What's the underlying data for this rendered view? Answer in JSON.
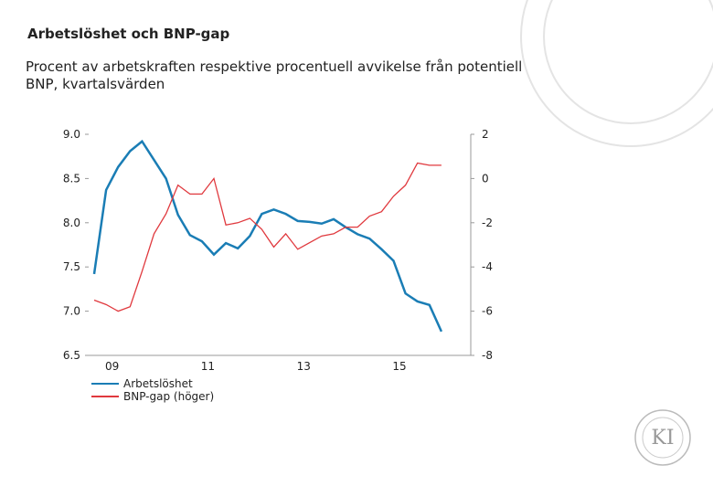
{
  "chart_data": {
    "type": "line",
    "title": "Arbetslöshet och BNP-gap",
    "subtitle": "Procent av arbetskraften respektive procentuell avvikelse från potentiell BNP, kvartalsvärden",
    "categories": [
      null,
      "09",
      null,
      null,
      null,
      null,
      null,
      null,
      null,
      "11",
      null,
      null,
      null,
      null,
      null,
      null,
      null,
      "13",
      null,
      null,
      null,
      null,
      null,
      null,
      null,
      "15",
      null,
      null,
      null,
      null
    ],
    "series": [
      {
        "name": "Arbetslöshet",
        "color": "#1a7db5",
        "values": [
          7.42,
          8.37,
          8.63,
          8.81,
          8.92,
          8.71,
          8.5,
          8.09,
          7.86,
          7.79,
          7.64,
          7.77,
          7.71,
          7.85,
          8.1,
          8.15,
          8.1,
          8.02,
          8.01,
          7.99,
          8.04,
          7.95,
          7.87,
          7.82,
          7.7,
          7.57,
          7.2,
          7.11,
          7.07,
          6.77
        ]
      },
      {
        "name": "BNP-gap (höger)",
        "color": "#e0393e",
        "axis": "y2",
        "values": [
          -5.5,
          -5.7,
          -6.0,
          -5.8,
          -4.2,
          -2.5,
          -1.6,
          -0.3,
          -0.7,
          -0.7,
          0.0,
          -2.1,
          -2.0,
          -1.8,
          -2.3,
          -3.1,
          -2.5,
          -3.2,
          -2.9,
          -2.6,
          -2.5,
          -2.2,
          -2.2,
          -1.7,
          -1.5,
          -0.8,
          -0.3,
          0.7,
          0.6,
          0.6
        ]
      }
    ],
    "ylim": [
      6.5,
      9.0
    ],
    "yticks": [
      {
        "value": 6.5,
        "label": "6.5"
      },
      {
        "value": 7,
        "label": "7.0"
      },
      {
        "value": 7.5,
        "label": "7.5"
      },
      {
        "value": 8,
        "label": "8.0"
      },
      {
        "value": 8.5,
        "label": "8.5"
      },
      {
        "value": 9,
        "label": "9.0"
      }
    ],
    "y2lim": [
      -8,
      2
    ],
    "y2ticks": [
      -8,
      -6,
      -4,
      -2,
      0,
      2
    ],
    "legend": "bottom-left"
  },
  "logo": "KI"
}
